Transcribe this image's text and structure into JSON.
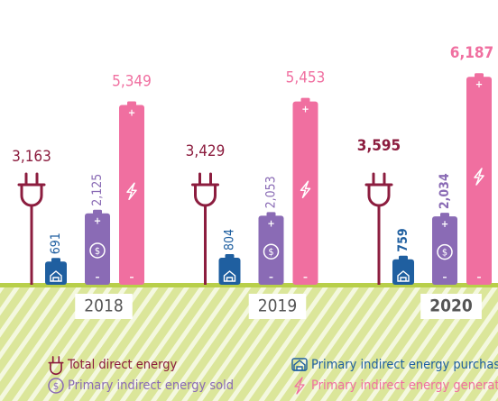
{
  "chart_data": {
    "type": "battery-bar",
    "categories": [
      "2018",
      "2019",
      "2020"
    ],
    "series": [
      {
        "name": "Total direct energy",
        "color": "#8c1d3f",
        "values": [
          3163,
          3429,
          3595
        ],
        "value_labels": [
          "3,163",
          "3,429",
          "3,595"
        ]
      },
      {
        "name": "Primary indirect energy purchased",
        "color": "#1f5fa0",
        "values": [
          691,
          804,
          759
        ],
        "value_labels": [
          "691",
          "804",
          "759"
        ]
      },
      {
        "name": "Primary indirect energy sold",
        "color": "#8a6bb5",
        "values": [
          2125,
          2053,
          2034
        ],
        "value_labels": [
          "2,125",
          "2,053",
          "2,034"
        ]
      },
      {
        "name": "Primary indirect energy generated",
        "color": "#f06fa0",
        "values": [
          5349,
          5453,
          6187
        ],
        "value_labels": [
          "5,349",
          "5,453",
          "6,187"
        ]
      }
    ]
  }
}
